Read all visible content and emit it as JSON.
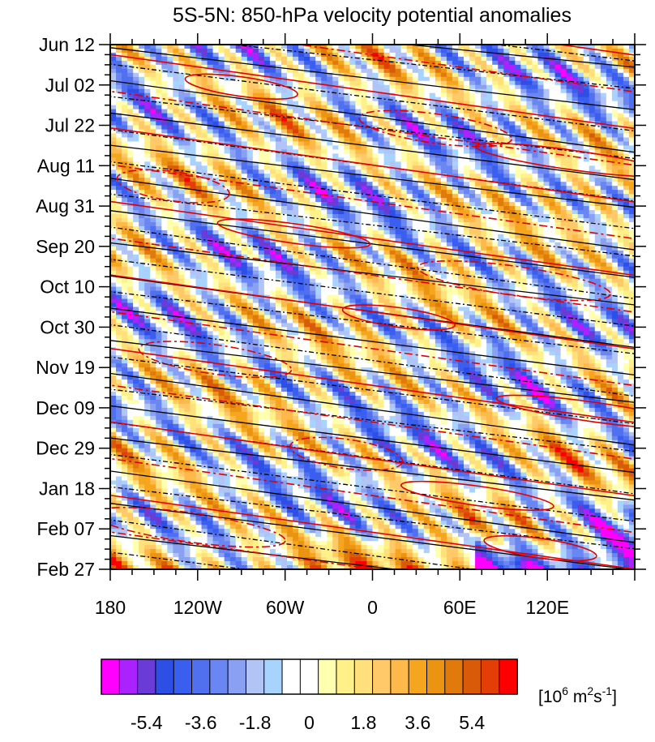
{
  "chart_data": {
    "type": "heatmap",
    "title": "5S-5N: 850-hPa velocity potential anomalies",
    "x_ticks": [
      "180",
      "120W",
      "60W",
      "0",
      "60E",
      "120E"
    ],
    "x_values_deg_east": [
      180,
      240,
      300,
      360,
      420,
      480
    ],
    "xlim_deg_east": [
      180,
      540
    ],
    "y_ticks": [
      "Jun 12",
      "Jul 02",
      "Jul 22",
      "Aug 11",
      "Aug 31",
      "Sep 20",
      "Oct 10",
      "Oct 30",
      "Nov 19",
      "Dec 09",
      "Dec 29",
      "Jan 18",
      "Feb 07",
      "Feb 27"
    ],
    "y_direction": "time increases downward",
    "colorbar": {
      "unit_base": "[10",
      "unit_sup1": "6",
      "unit_mid": " m",
      "unit_sup2": "2",
      "unit_s": "s",
      "unit_sup3": "-1",
      "unit_end": "]",
      "tick_labels": [
        "-5.4",
        "-3.6",
        "-1.8",
        "0",
        "1.8",
        "3.6",
        "5.4"
      ],
      "tick_values": [
        -5.4,
        -3.6,
        -1.8,
        0,
        1.8,
        3.6,
        5.4
      ],
      "levels": [
        -6.6,
        -6.0,
        -5.4,
        -4.8,
        -4.2,
        -3.6,
        -3.0,
        -2.4,
        -1.8,
        -1.2,
        -0.6,
        0,
        0.6,
        1.2,
        1.8,
        2.4,
        3.0,
        3.6,
        4.2,
        4.8,
        5.4,
        6.0,
        6.6
      ],
      "colors": [
        "#ff00ff",
        "#aa22ff",
        "#6a3bd6",
        "#2d4fe6",
        "#3a5ff0",
        "#5070f0",
        "#6a86f2",
        "#8aa0f3",
        "#b2c4f6",
        "#a8d2ff",
        "#ffffff",
        "#ffffff",
        "#ffffb0",
        "#fff08a",
        "#ffe07a",
        "#ffc96a",
        "#ffb84a",
        "#f5a51e",
        "#eb9412",
        "#e07a0c",
        "#d95b0a",
        "#e33e08",
        "#ff0000"
      ]
    },
    "contours": {
      "black_solid": "positive contours",
      "black_dashed": "negative contours",
      "red_solid": "positive contours",
      "red_dashed": "negative contours"
    },
    "note": "shading: Hovmoller diagram of eastward-propagating anomalies"
  }
}
